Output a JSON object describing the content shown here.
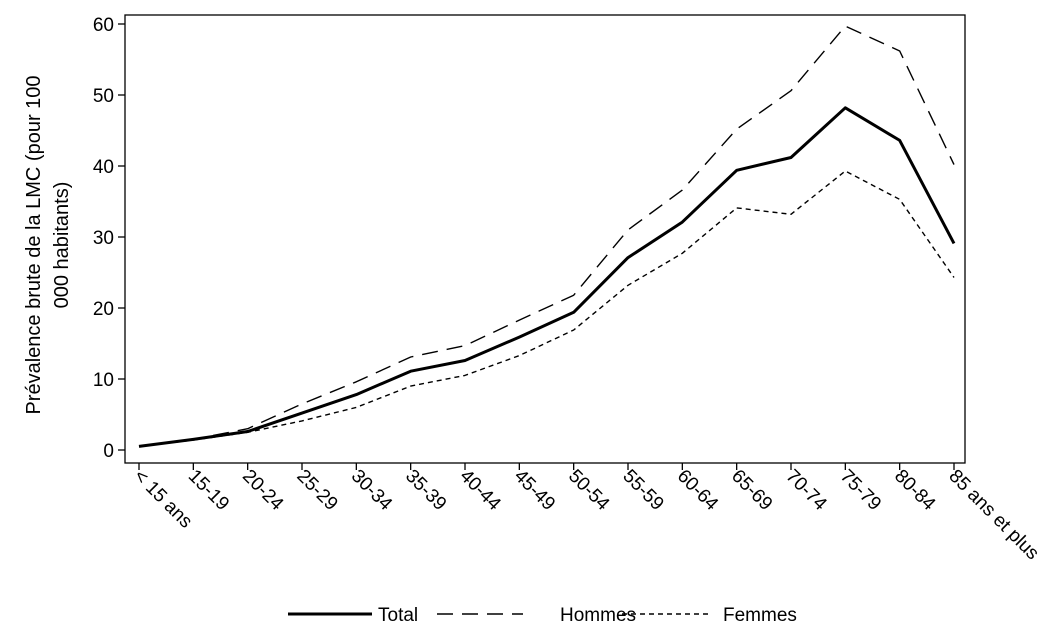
{
  "chart_data": {
    "type": "line",
    "categories": [
      "< 15 ans",
      "15-19",
      "20-24",
      "25-29",
      "30-34",
      "35-39",
      "40-44",
      "45-49",
      "50-54",
      "55-59",
      "60-64",
      "65-69",
      "70-74",
      "75-79",
      "80-84",
      "85 ans et plus"
    ],
    "ylabel_lines": [
      "Prévalence brute de la LMC (pour 100",
      "000 habitants)"
    ],
    "xlabel": "",
    "ylim": [
      0,
      60
    ],
    "yticks": [
      0,
      10,
      20,
      30,
      40,
      50,
      60
    ],
    "grid": false,
    "legend_position": "bottom",
    "series": [
      {
        "name": "Total",
        "style": "solid",
        "values": [
          0.5,
          1.5,
          2.6,
          5.2,
          7.8,
          11.1,
          12.6,
          15.9,
          19.4,
          27.1,
          32.1,
          39.4,
          41.2,
          48.2,
          43.6,
          29.1
        ]
      },
      {
        "name": "Hommes",
        "style": "long-dash",
        "values": [
          0.5,
          1.5,
          3.0,
          6.5,
          9.6,
          13.1,
          14.7,
          18.3,
          21.8,
          31.0,
          36.6,
          45.2,
          50.6,
          59.7,
          56.2,
          40.2
        ]
      },
      {
        "name": "Femmes",
        "style": "short-dash",
        "values": [
          0.5,
          1.4,
          2.5,
          4.1,
          6.0,
          9.0,
          10.5,
          13.3,
          16.9,
          23.2,
          27.7,
          34.1,
          33.2,
          39.3,
          35.3,
          24.3
        ]
      }
    ]
  }
}
